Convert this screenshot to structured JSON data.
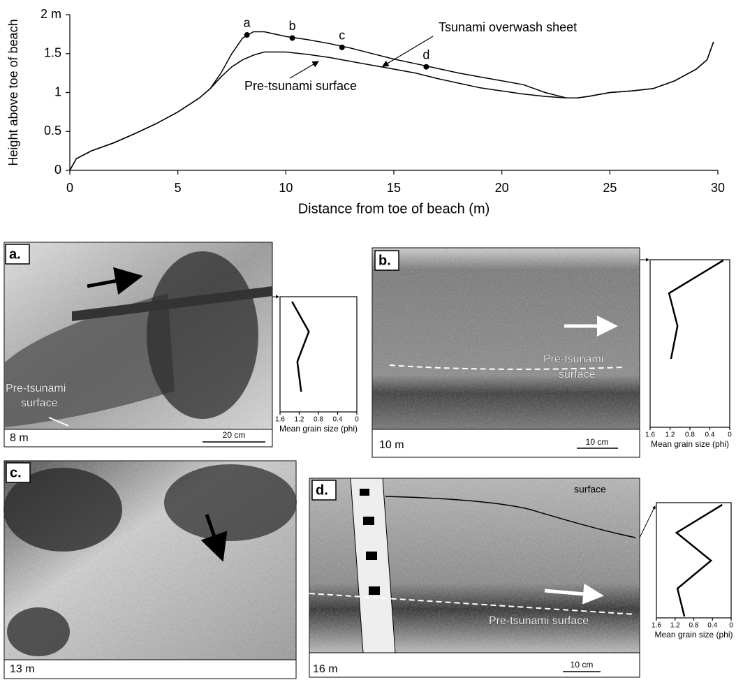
{
  "chart_data": [
    {
      "type": "line",
      "xlabel": "Distance from toe of beach (m)",
      "ylabel": "Height above toe of beach",
      "x": [
        0,
        0.3,
        1,
        2,
        3,
        4,
        5,
        6,
        6.5,
        7,
        7.5,
        8,
        8.5,
        9,
        10,
        11,
        12,
        13,
        14,
        15,
        16,
        17,
        18,
        19,
        20,
        21,
        22,
        23,
        23.5,
        24,
        25,
        26,
        27,
        28,
        29,
        29.5,
        29.8
      ],
      "series": [
        {
          "name": "Tsunami overwash sheet",
          "color": "#000000",
          "values": [
            0,
            0.15,
            0.25,
            0.35,
            0.47,
            0.6,
            0.75,
            0.93,
            1.05,
            1.25,
            1.5,
            1.7,
            1.78,
            1.78,
            1.72,
            1.68,
            1.63,
            1.57,
            1.5,
            1.43,
            1.37,
            1.31,
            1.25,
            1.2,
            1.15,
            1.1,
            1.0,
            0.93,
            0.93,
            0.95,
            1.0,
            1.02,
            1.05,
            1.15,
            1.3,
            1.42,
            1.65
          ]
        },
        {
          "name": "Pre-tsunami surface",
          "color": "#000000",
          "values": [
            0,
            0.15,
            0.25,
            0.35,
            0.47,
            0.6,
            0.75,
            0.93,
            1.05,
            1.2,
            1.33,
            1.42,
            1.48,
            1.52,
            1.52,
            1.49,
            1.45,
            1.4,
            1.35,
            1.3,
            1.25,
            1.18,
            1.12,
            1.06,
            1.02,
            0.98,
            0.95,
            0.93,
            0.93,
            0.95,
            1.0,
            1.02,
            1.05,
            1.15,
            1.3,
            1.42,
            1.65
          ]
        }
      ],
      "points": [
        {
          "label": "a",
          "x": 8.2,
          "y": 1.74
        },
        {
          "label": "b",
          "x": 10.3,
          "y": 1.7
        },
        {
          "label": "c",
          "x": 12.6,
          "y": 1.58
        },
        {
          "label": "d",
          "x": 16.5,
          "y": 1.33
        }
      ],
      "xlim": [
        0,
        30
      ],
      "xticks": [
        0,
        5,
        10,
        15,
        20,
        25,
        30
      ],
      "ylim": [
        0,
        2
      ],
      "yticks": [
        0,
        0.5,
        1,
        1.5,
        {
          "value": 2,
          "label": "2 m"
        }
      ]
    },
    {
      "type": "profile",
      "xlabel": "Mean grain size (phi)",
      "values": [
        1.35,
        1.0,
        1.24,
        1.16
      ],
      "xlim": [
        1.6,
        0
      ],
      "xticks": [
        1.6,
        1.2,
        0.8,
        0.4,
        0
      ]
    },
    {
      "type": "profile",
      "xlabel": "Mean grain size (phi)",
      "values": [
        0.13,
        1.22,
        1.05,
        1.18
      ],
      "xlim": [
        1.6,
        0
      ],
      "xticks": [
        1.6,
        1.2,
        0.8,
        0.4,
        0
      ]
    },
    {
      "type": "profile",
      "xlabel": "Mean grain size (phi)",
      "values": [
        0.19,
        1.17,
        0.43,
        1.15,
        1.0
      ],
      "xlim": [
        1.6,
        0
      ],
      "xticks": [
        1.6,
        1.2,
        0.8,
        0.4,
        0
      ]
    }
  ],
  "panels": [
    {
      "label": "a.",
      "distance": "8 m",
      "scale": "20 cm",
      "notes": [
        "Pre-tsunami",
        "surface"
      ]
    },
    {
      "label": "b.",
      "distance": "10 m",
      "scale": "10 cm",
      "notes": [
        "Pre-tsunami",
        "surface"
      ]
    },
    {
      "label": "c.",
      "distance": "13 m"
    },
    {
      "label": "d.",
      "distance": "16 m",
      "scale": "10 cm",
      "notes": [
        "surface",
        "Pre-tsunami surface"
      ]
    }
  ]
}
